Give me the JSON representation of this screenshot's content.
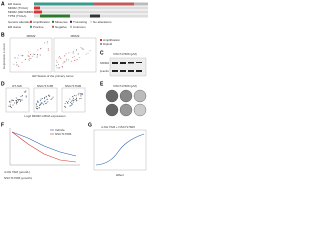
{
  "panels": {
    "a": {
      "letter": "A",
      "rows": [
        "ER status",
        "MDM2 (TCGA)",
        "MDM2 (METABRIC)",
        "TP53 (TCGA)"
      ],
      "legend": [
        "Genetic alteration",
        "Amplification",
        "Missense",
        "Truncating",
        "No alterations",
        "ER status",
        "Positive",
        "Negative",
        "Unknown"
      ]
    },
    "b": {
      "letter": "B",
      "plots": [
        "MDM2",
        "MDM2"
      ],
      "y_label": "Expression z-score",
      "x_label": "ER Status of the primary tumor",
      "legend": [
        "Amplification",
        "Diploid"
      ]
    },
    "c": {
      "letter": "C",
      "header": "NSC717606 (μM)",
      "rows": [
        "MDM2",
        "β-actin"
      ]
    },
    "d": {
      "letter": "D",
      "plots": [
        "RT-SW",
        "NSC717185",
        "NSC717606"
      ],
      "x_label": "Log2 MDM2 mRNA expression"
    },
    "e": {
      "letter": "E",
      "header": "NSC717606 (μM)"
    },
    "f": {
      "letter": "F",
      "legend": [
        "Vehicle",
        "NSC717606"
      ],
      "rows": [
        "4-OH TAM (µmol/L)",
        "NSC717606 (µmol/L)"
      ]
    },
    "g": {
      "letter": "G",
      "header": "4-OH TAM + NSC717606",
      "x_label": "Effect"
    }
  }
}
